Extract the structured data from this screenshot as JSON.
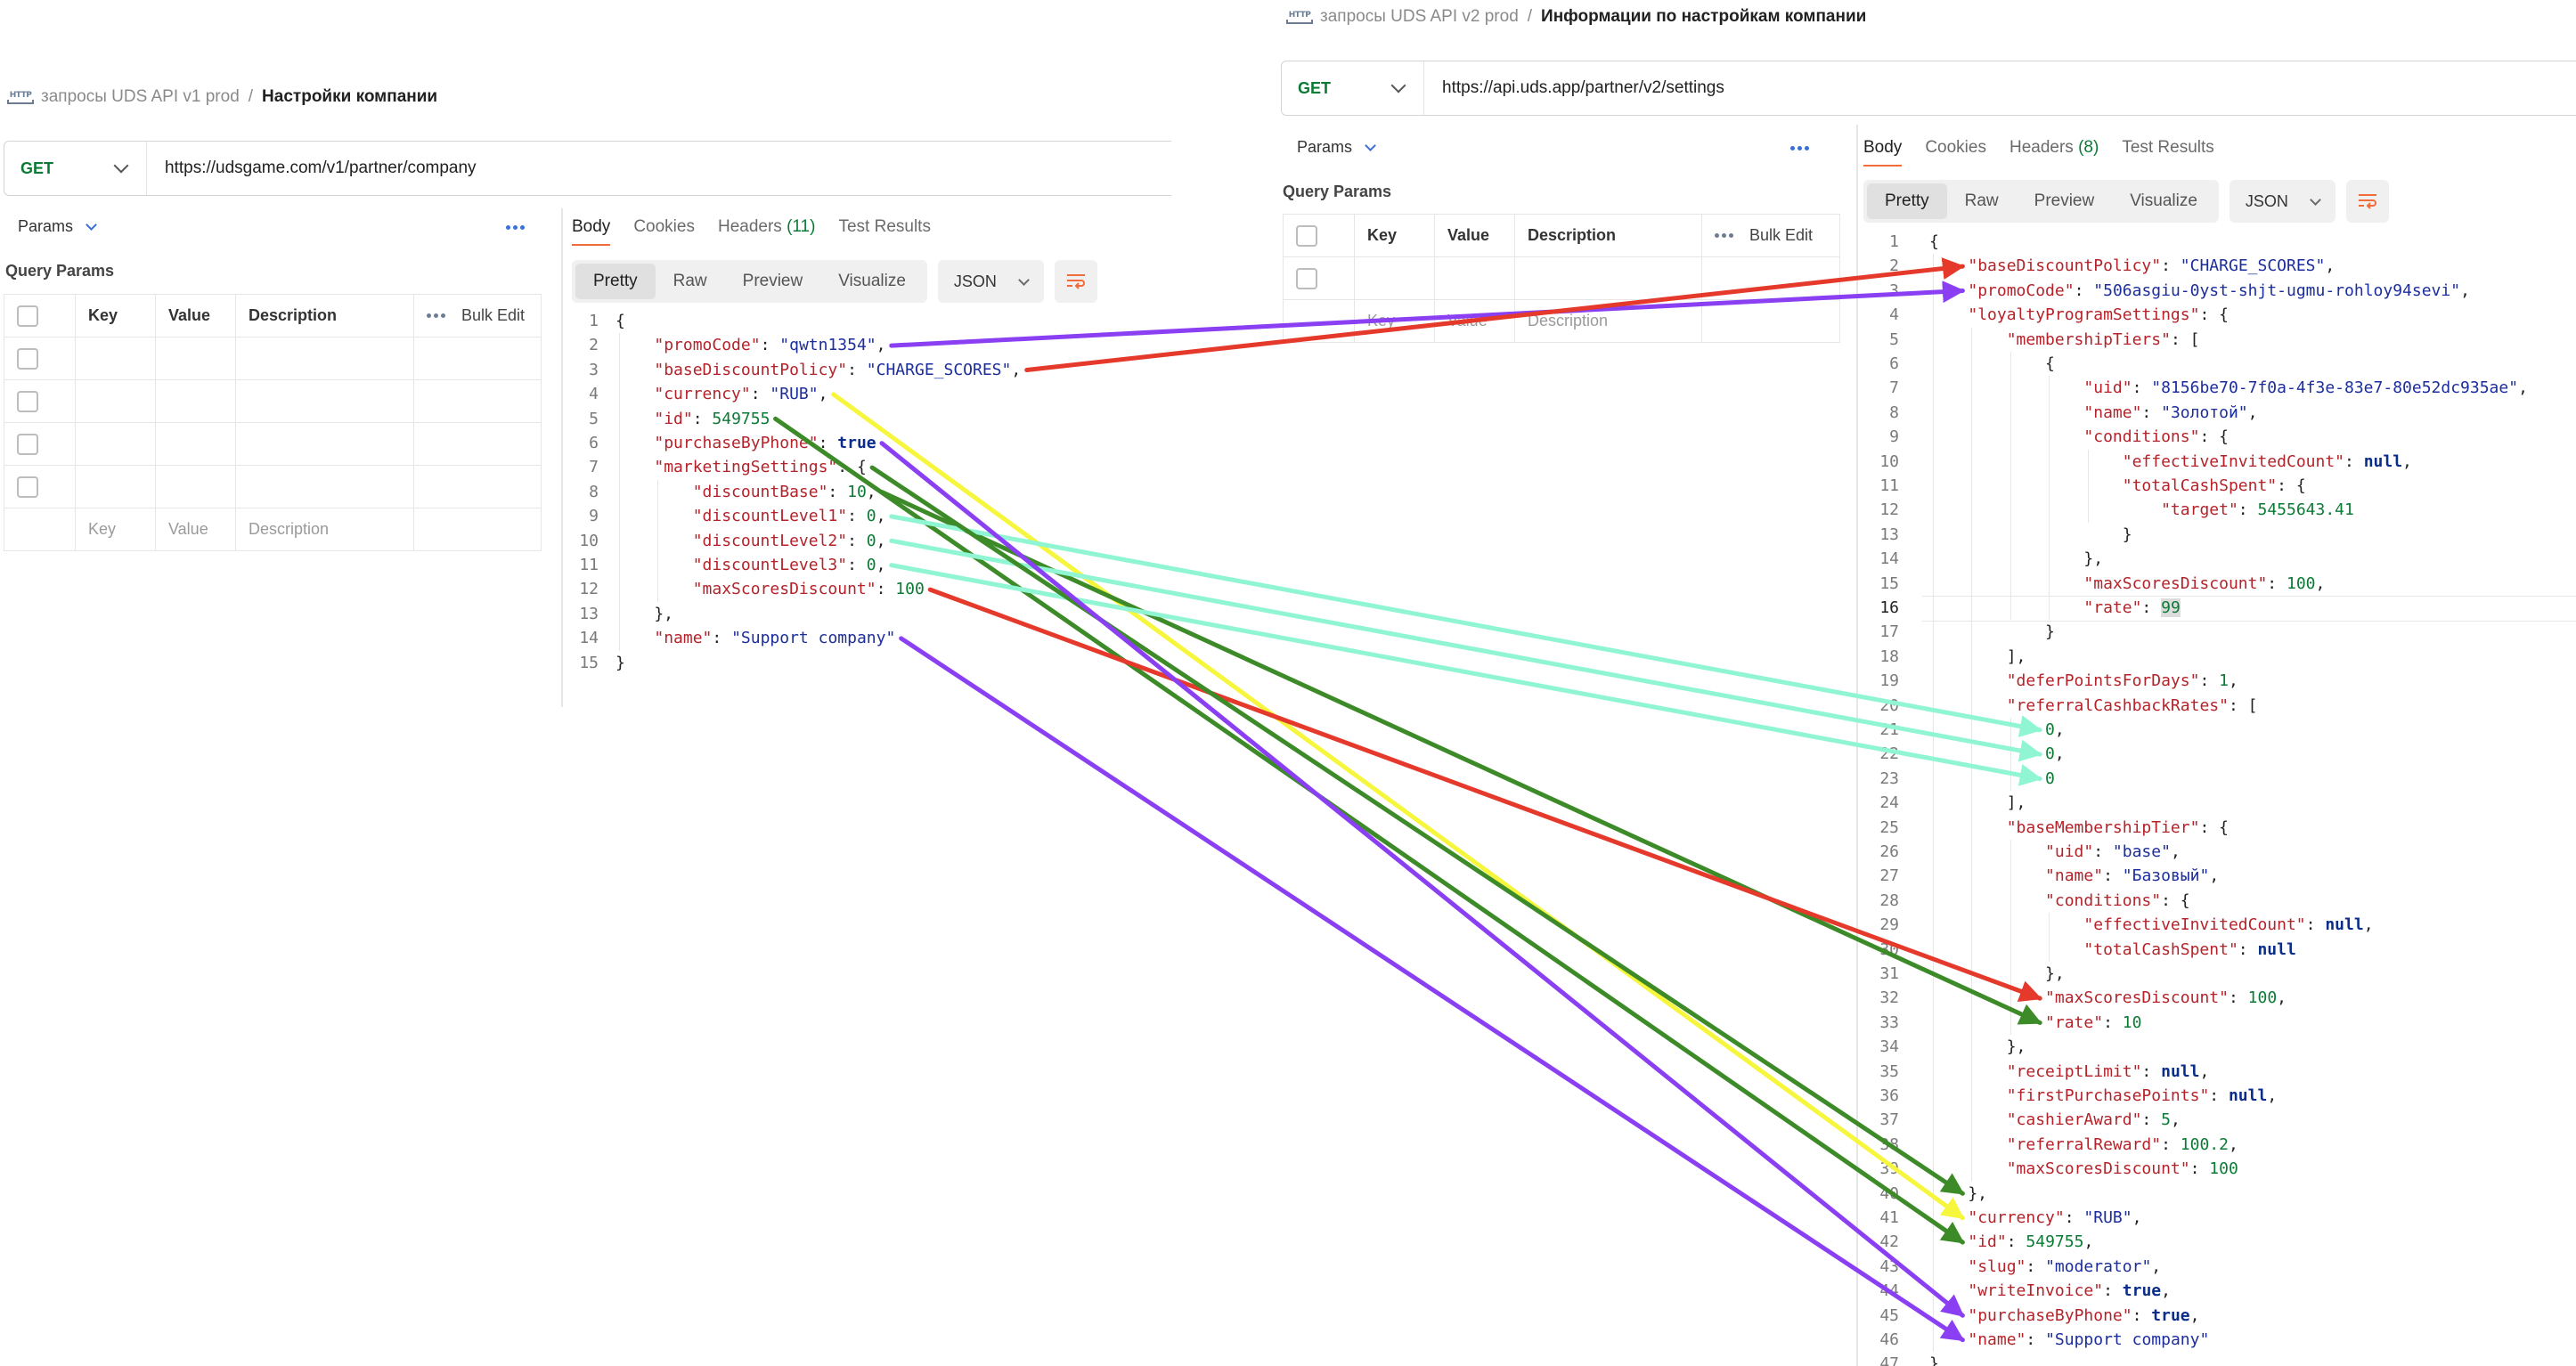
{
  "left": {
    "breadcrumb": {
      "collection": "запросы UDS API v1 prod",
      "separator": "/",
      "request": "Настройки компании"
    },
    "method": "GET",
    "url": "https://udsgame.com/v1/partner/company",
    "params_label": "Params",
    "query_params_title": "Query Params",
    "table": {
      "col_key": "Key",
      "col_value": "Value",
      "col_description": "Description",
      "bulk_edit": "Bulk Edit",
      "ph_key": "Key",
      "ph_value": "Value",
      "ph_description": "Description"
    },
    "response_tabs": {
      "body": "Body",
      "cookies": "Cookies",
      "headers": "Headers",
      "headers_count": "(11)",
      "tests": "Test Results"
    },
    "views": {
      "pretty": "Pretty",
      "raw": "Raw",
      "preview": "Preview",
      "visualize": "Visualize",
      "format": "JSON"
    }
  },
  "right": {
    "breadcrumb": {
      "collection": "запросы UDS API v2 prod",
      "separator": "/",
      "request": "Информации по настройкам компании"
    },
    "method": "GET",
    "url": "https://api.uds.app/partner/v2/settings",
    "params_label": "Params",
    "query_params_title": "Query Params",
    "table": {
      "col_key": "Key",
      "col_value": "Value",
      "col_description": "Description",
      "bulk_edit": "Bulk Edit",
      "ph_key": "Key",
      "ph_value": "Value",
      "ph_description": "Description"
    },
    "response_tabs": {
      "body": "Body",
      "cookies": "Cookies",
      "headers": "Headers",
      "headers_count": "(8)",
      "tests": "Test Results"
    },
    "views": {
      "pretty": "Pretty",
      "raw": "Raw",
      "preview": "Preview",
      "visualize": "Visualize",
      "format": "JSON"
    }
  },
  "code_left": [
    [
      {
        "t": "p",
        "v": "{"
      }
    ],
    [
      {
        "t": "p",
        "v": "    "
      },
      {
        "t": "k",
        "v": "\"promoCode\""
      },
      {
        "t": "p",
        "v": ": "
      },
      {
        "t": "s",
        "v": "\"qwtn1354\""
      },
      {
        "t": "p",
        "v": ","
      }
    ],
    [
      {
        "t": "p",
        "v": "    "
      },
      {
        "t": "k",
        "v": "\"baseDiscountPolicy\""
      },
      {
        "t": "p",
        "v": ": "
      },
      {
        "t": "s",
        "v": "\"CHARGE_SCORES\""
      },
      {
        "t": "p",
        "v": ","
      }
    ],
    [
      {
        "t": "p",
        "v": "    "
      },
      {
        "t": "k",
        "v": "\"currency\""
      },
      {
        "t": "p",
        "v": ": "
      },
      {
        "t": "s",
        "v": "\"RUB\""
      },
      {
        "t": "p",
        "v": ","
      }
    ],
    [
      {
        "t": "p",
        "v": "    "
      },
      {
        "t": "k",
        "v": "\"id\""
      },
      {
        "t": "p",
        "v": ": "
      },
      {
        "t": "n",
        "v": "549755"
      }
    ],
    [
      {
        "t": "p",
        "v": "    "
      },
      {
        "t": "k",
        "v": "\"purchaseByPhone\""
      },
      {
        "t": "p",
        "v": ": "
      },
      {
        "t": "b",
        "v": "true"
      }
    ],
    [
      {
        "t": "p",
        "v": "    "
      },
      {
        "t": "k",
        "v": "\"marketingSettings\""
      },
      {
        "t": "p",
        "v": ": {"
      }
    ],
    [
      {
        "t": "p",
        "v": "        "
      },
      {
        "t": "k",
        "v": "\"discountBase\""
      },
      {
        "t": "p",
        "v": ": "
      },
      {
        "t": "n",
        "v": "10"
      },
      {
        "t": "p",
        "v": ","
      }
    ],
    [
      {
        "t": "p",
        "v": "        "
      },
      {
        "t": "k",
        "v": "\"discountLevel1\""
      },
      {
        "t": "p",
        "v": ": "
      },
      {
        "t": "n",
        "v": "0"
      },
      {
        "t": "p",
        "v": ","
      }
    ],
    [
      {
        "t": "p",
        "v": "        "
      },
      {
        "t": "k",
        "v": "\"discountLevel2\""
      },
      {
        "t": "p",
        "v": ": "
      },
      {
        "t": "n",
        "v": "0"
      },
      {
        "t": "p",
        "v": ","
      }
    ],
    [
      {
        "t": "p",
        "v": "        "
      },
      {
        "t": "k",
        "v": "\"discountLevel3\""
      },
      {
        "t": "p",
        "v": ": "
      },
      {
        "t": "n",
        "v": "0"
      },
      {
        "t": "p",
        "v": ","
      }
    ],
    [
      {
        "t": "p",
        "v": "        "
      },
      {
        "t": "k",
        "v": "\"maxScoresDiscount\""
      },
      {
        "t": "p",
        "v": ": "
      },
      {
        "t": "n",
        "v": "100"
      }
    ],
    [
      {
        "t": "p",
        "v": "    },"
      }
    ],
    [
      {
        "t": "p",
        "v": "    "
      },
      {
        "t": "k",
        "v": "\"name\""
      },
      {
        "t": "p",
        "v": ": "
      },
      {
        "t": "s",
        "v": "\"Support company\""
      }
    ],
    [
      {
        "t": "p",
        "v": "}"
      }
    ]
  ],
  "code_right": [
    [
      {
        "t": "p",
        "v": "{"
      }
    ],
    [
      {
        "t": "p",
        "v": "    "
      },
      {
        "t": "k",
        "v": "\"baseDiscountPolicy\""
      },
      {
        "t": "p",
        "v": ": "
      },
      {
        "t": "s",
        "v": "\"CHARGE_SCORES\""
      },
      {
        "t": "p",
        "v": ","
      }
    ],
    [
      {
        "t": "p",
        "v": "    "
      },
      {
        "t": "k",
        "v": "\"promoCode\""
      },
      {
        "t": "p",
        "v": ": "
      },
      {
        "t": "s",
        "v": "\"506asgiu-0yst-shjt-ugmu-rohloy94sevi\""
      },
      {
        "t": "p",
        "v": ","
      }
    ],
    [
      {
        "t": "p",
        "v": "    "
      },
      {
        "t": "k",
        "v": "\"loyaltyProgramSettings\""
      },
      {
        "t": "p",
        "v": ": {"
      }
    ],
    [
      {
        "t": "p",
        "v": "        "
      },
      {
        "t": "k",
        "v": "\"membershipTiers\""
      },
      {
        "t": "p",
        "v": ": ["
      }
    ],
    [
      {
        "t": "p",
        "v": "            {"
      }
    ],
    [
      {
        "t": "p",
        "v": "                "
      },
      {
        "t": "k",
        "v": "\"uid\""
      },
      {
        "t": "p",
        "v": ": "
      },
      {
        "t": "s",
        "v": "\"8156be70-7f0a-4f3e-83e7-80e52dc935ae\""
      },
      {
        "t": "p",
        "v": ","
      }
    ],
    [
      {
        "t": "p",
        "v": "                "
      },
      {
        "t": "k",
        "v": "\"name\""
      },
      {
        "t": "p",
        "v": ": "
      },
      {
        "t": "s",
        "v": "\"Золотой\""
      },
      {
        "t": "p",
        "v": ","
      }
    ],
    [
      {
        "t": "p",
        "v": "                "
      },
      {
        "t": "k",
        "v": "\"conditions\""
      },
      {
        "t": "p",
        "v": ": {"
      }
    ],
    [
      {
        "t": "p",
        "v": "                    "
      },
      {
        "t": "k",
        "v": "\"effectiveInvitedCount\""
      },
      {
        "t": "p",
        "v": ": "
      },
      {
        "t": "b",
        "v": "null"
      },
      {
        "t": "p",
        "v": ","
      }
    ],
    [
      {
        "t": "p",
        "v": "                    "
      },
      {
        "t": "k",
        "v": "\"totalCashSpent\""
      },
      {
        "t": "p",
        "v": ": {"
      }
    ],
    [
      {
        "t": "p",
        "v": "                        "
      },
      {
        "t": "k",
        "v": "\"target\""
      },
      {
        "t": "p",
        "v": ": "
      },
      {
        "t": "n",
        "v": "5455643.41"
      }
    ],
    [
      {
        "t": "p",
        "v": "                    }"
      }
    ],
    [
      {
        "t": "p",
        "v": "                },"
      }
    ],
    [
      {
        "t": "p",
        "v": "                "
      },
      {
        "t": "k",
        "v": "\"maxScoresDiscount\""
      },
      {
        "t": "p",
        "v": ": "
      },
      {
        "t": "n",
        "v": "100"
      },
      {
        "t": "p",
        "v": ","
      }
    ],
    [
      {
        "t": "p",
        "v": "                "
      },
      {
        "t": "k",
        "v": "\"rate\""
      },
      {
        "t": "p",
        "v": ": "
      },
      {
        "t": "h",
        "v": "99"
      }
    ],
    [
      {
        "t": "p",
        "v": "            }"
      }
    ],
    [
      {
        "t": "p",
        "v": "        ],"
      }
    ],
    [
      {
        "t": "p",
        "v": "        "
      },
      {
        "t": "k",
        "v": "\"deferPointsForDays\""
      },
      {
        "t": "p",
        "v": ": "
      },
      {
        "t": "n",
        "v": "1"
      },
      {
        "t": "p",
        "v": ","
      }
    ],
    [
      {
        "t": "p",
        "v": "        "
      },
      {
        "t": "k",
        "v": "\"referralCashbackRates\""
      },
      {
        "t": "p",
        "v": ": ["
      }
    ],
    [
      {
        "t": "p",
        "v": "            "
      },
      {
        "t": "n",
        "v": "0"
      },
      {
        "t": "p",
        "v": ","
      }
    ],
    [
      {
        "t": "p",
        "v": "            "
      },
      {
        "t": "n",
        "v": "0"
      },
      {
        "t": "p",
        "v": ","
      }
    ],
    [
      {
        "t": "p",
        "v": "            "
      },
      {
        "t": "n",
        "v": "0"
      }
    ],
    [
      {
        "t": "p",
        "v": "        ],"
      }
    ],
    [
      {
        "t": "p",
        "v": "        "
      },
      {
        "t": "k",
        "v": "\"baseMembershipTier\""
      },
      {
        "t": "p",
        "v": ": {"
      }
    ],
    [
      {
        "t": "p",
        "v": "            "
      },
      {
        "t": "k",
        "v": "\"uid\""
      },
      {
        "t": "p",
        "v": ": "
      },
      {
        "t": "s",
        "v": "\"base\""
      },
      {
        "t": "p",
        "v": ","
      }
    ],
    [
      {
        "t": "p",
        "v": "            "
      },
      {
        "t": "k",
        "v": "\"name\""
      },
      {
        "t": "p",
        "v": ": "
      },
      {
        "t": "s",
        "v": "\"Базовый\""
      },
      {
        "t": "p",
        "v": ","
      }
    ],
    [
      {
        "t": "p",
        "v": "            "
      },
      {
        "t": "k",
        "v": "\"conditions\""
      },
      {
        "t": "p",
        "v": ": {"
      }
    ],
    [
      {
        "t": "p",
        "v": "                "
      },
      {
        "t": "k",
        "v": "\"effectiveInvitedCount\""
      },
      {
        "t": "p",
        "v": ": "
      },
      {
        "t": "b",
        "v": "null"
      },
      {
        "t": "p",
        "v": ","
      }
    ],
    [
      {
        "t": "p",
        "v": "                "
      },
      {
        "t": "k",
        "v": "\"totalCashSpent\""
      },
      {
        "t": "p",
        "v": ": "
      },
      {
        "t": "b",
        "v": "null"
      }
    ],
    [
      {
        "t": "p",
        "v": "            },"
      }
    ],
    [
      {
        "t": "p",
        "v": "            "
      },
      {
        "t": "k",
        "v": "\"maxScoresDiscount\""
      },
      {
        "t": "p",
        "v": ": "
      },
      {
        "t": "n",
        "v": "100"
      },
      {
        "t": "p",
        "v": ","
      }
    ],
    [
      {
        "t": "p",
        "v": "            "
      },
      {
        "t": "k",
        "v": "\"rate\""
      },
      {
        "t": "p",
        "v": ": "
      },
      {
        "t": "n",
        "v": "10"
      }
    ],
    [
      {
        "t": "p",
        "v": "        },"
      }
    ],
    [
      {
        "t": "p",
        "v": "        "
      },
      {
        "t": "k",
        "v": "\"receiptLimit\""
      },
      {
        "t": "p",
        "v": ": "
      },
      {
        "t": "b",
        "v": "null"
      },
      {
        "t": "p",
        "v": ","
      }
    ],
    [
      {
        "t": "p",
        "v": "        "
      },
      {
        "t": "k",
        "v": "\"firstPurchasePoints\""
      },
      {
        "t": "p",
        "v": ": "
      },
      {
        "t": "b",
        "v": "null"
      },
      {
        "t": "p",
        "v": ","
      }
    ],
    [
      {
        "t": "p",
        "v": "        "
      },
      {
        "t": "k",
        "v": "\"cashierAward\""
      },
      {
        "t": "p",
        "v": ": "
      },
      {
        "t": "n",
        "v": "5"
      },
      {
        "t": "p",
        "v": ","
      }
    ],
    [
      {
        "t": "p",
        "v": "        "
      },
      {
        "t": "k",
        "v": "\"referralReward\""
      },
      {
        "t": "p",
        "v": ": "
      },
      {
        "t": "n",
        "v": "100.2"
      },
      {
        "t": "p",
        "v": ","
      }
    ],
    [
      {
        "t": "p",
        "v": "        "
      },
      {
        "t": "k",
        "v": "\"maxScoresDiscount\""
      },
      {
        "t": "p",
        "v": ": "
      },
      {
        "t": "n",
        "v": "100"
      }
    ],
    [
      {
        "t": "p",
        "v": "    },"
      }
    ],
    [
      {
        "t": "p",
        "v": "    "
      },
      {
        "t": "k",
        "v": "\"currency\""
      },
      {
        "t": "p",
        "v": ": "
      },
      {
        "t": "s",
        "v": "\"RUB\""
      },
      {
        "t": "p",
        "v": ","
      }
    ],
    [
      {
        "t": "p",
        "v": "    "
      },
      {
        "t": "k",
        "v": "\"id\""
      },
      {
        "t": "p",
        "v": ": "
      },
      {
        "t": "n",
        "v": "549755"
      },
      {
        "t": "p",
        "v": ","
      }
    ],
    [
      {
        "t": "p",
        "v": "    "
      },
      {
        "t": "k",
        "v": "\"slug\""
      },
      {
        "t": "p",
        "v": ": "
      },
      {
        "t": "s",
        "v": "\"moderator\""
      },
      {
        "t": "p",
        "v": ","
      }
    ],
    [
      {
        "t": "p",
        "v": "    "
      },
      {
        "t": "k",
        "v": "\"writeInvoice\""
      },
      {
        "t": "p",
        "v": ": "
      },
      {
        "t": "b",
        "v": "true"
      },
      {
        "t": "p",
        "v": ","
      }
    ],
    [
      {
        "t": "p",
        "v": "    "
      },
      {
        "t": "k",
        "v": "\"purchaseByPhone\""
      },
      {
        "t": "p",
        "v": ": "
      },
      {
        "t": "b",
        "v": "true"
      },
      {
        "t": "p",
        "v": ","
      }
    ],
    [
      {
        "t": "p",
        "v": "    "
      },
      {
        "t": "k",
        "v": "\"name\""
      },
      {
        "t": "p",
        "v": ": "
      },
      {
        "t": "s",
        "v": "\"Support company\""
      }
    ],
    [
      {
        "t": "p",
        "v": "}"
      }
    ]
  ],
  "right_current_line": 16,
  "arrows": [
    {
      "field": "promoCode",
      "color": "#8a3ff2",
      "from_line": 2,
      "to_line": 3
    },
    {
      "field": "baseDiscountPolicy",
      "color": "#e5392b",
      "from_line": 3,
      "to_line": 2
    },
    {
      "field": "currency",
      "color": "#f6f63c",
      "from_line": 4,
      "to_line": 41
    },
    {
      "field": "id",
      "color": "#3c8a28",
      "from_line": 5,
      "to_line": 42
    },
    {
      "field": "discountBase",
      "color": "#3c8a28",
      "from_line": 8,
      "to_line": 33
    },
    {
      "field": "discountLevel1",
      "color": "#8ff5d2",
      "from_line": 9,
      "to_line": 21
    },
    {
      "field": "discountLevel2",
      "color": "#8ff5d2",
      "from_line": 10,
      "to_line": 22
    },
    {
      "field": "discountLevel3",
      "color": "#8ff5d2",
      "from_line": 11,
      "to_line": 23
    },
    {
      "field": "maxScoresDiscount",
      "color": "#e5392b",
      "from_line": 12,
      "to_line": 32
    },
    {
      "field": "name",
      "color": "#8a3ff2",
      "from_line": 14,
      "to_line": 46
    },
    {
      "field": "marketingSettings",
      "color": "#3c8a28",
      "from_line": 7,
      "to_line": 40
    },
    {
      "field": "purchaseByPhone",
      "color": "#8a3ff2",
      "from_line": 6,
      "to_line": 45
    }
  ],
  "colors": {
    "method_get": "#0b7a35",
    "tab_accent": "#f26b3a",
    "json_key": "#b4232a",
    "json_string": "#1c2d9c",
    "json_number": "#0b7a35",
    "json_keyword": "#0a2d8a"
  }
}
